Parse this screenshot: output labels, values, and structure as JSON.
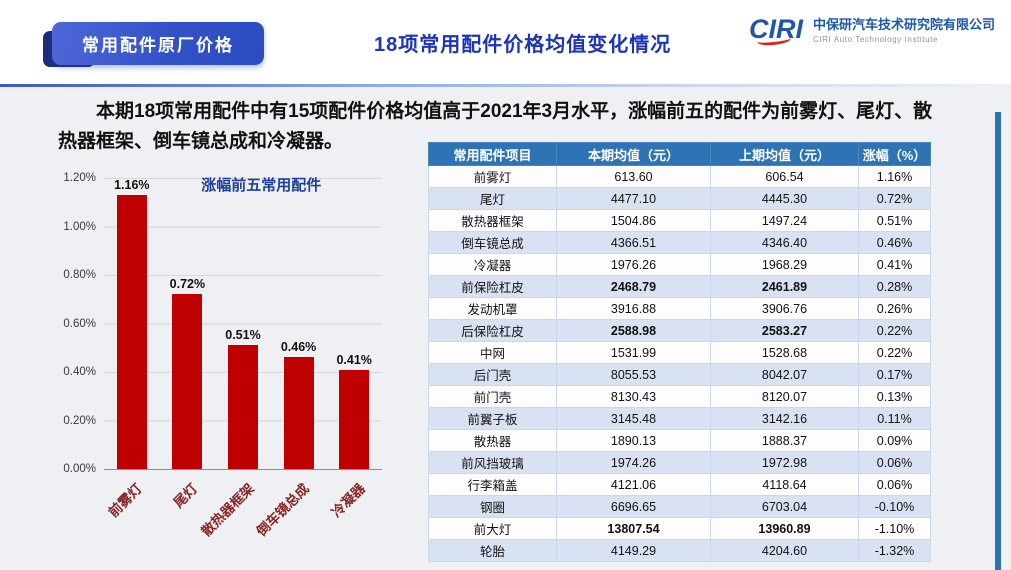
{
  "header": {
    "badge": "常用配件原厂价格",
    "title": "18项常用配件价格均值变化情况",
    "logo": {
      "mark": "CIRI",
      "company": "中保研汽车技术研究院有限公司",
      "subtitle": "CIRI Auto Technology Institute"
    }
  },
  "intro": "本期18项常用配件中有15项配件价格均值高于2021年3月水平，涨幅前五的配件为前雾灯、尾灯、散热器框架、倒车镜总成和冷凝器。",
  "chart_data": {
    "type": "bar",
    "title": "涨幅前五常用配件",
    "categories": [
      "前雾灯",
      "尾灯",
      "散热器框架",
      "倒车镜总成",
      "冷凝器"
    ],
    "values": [
      1.16,
      0.72,
      0.51,
      0.46,
      0.41
    ],
    "value_labels": [
      "1.16%",
      "0.72%",
      "0.51%",
      "0.46%",
      "0.41%"
    ],
    "xlabel": "",
    "ylabel": "",
    "ylim": [
      0,
      1.2
    ],
    "yticks": [
      "1.20%",
      "1.00%",
      "0.80%",
      "0.60%",
      "0.40%",
      "0.20%",
      "0.00%"
    ],
    "grid": true,
    "legend": false,
    "bar_color": "#c00000"
  },
  "table": {
    "headers": [
      "常用配件项目",
      "本期均值（元）",
      "上期均值（元）",
      "涨幅（%）"
    ],
    "rows": [
      {
        "name": "前雾灯",
        "current": "613.60",
        "previous": "606.54",
        "change": "1.16%",
        "bold": false
      },
      {
        "name": "尾灯",
        "current": "4477.10",
        "previous": "4445.30",
        "change": "0.72%",
        "bold": false
      },
      {
        "name": "散热器框架",
        "current": "1504.86",
        "previous": "1497.24",
        "change": "0.51%",
        "bold": false
      },
      {
        "name": "倒车镜总成",
        "current": "4366.51",
        "previous": "4346.40",
        "change": "0.46%",
        "bold": false
      },
      {
        "name": "冷凝器",
        "current": "1976.26",
        "previous": "1968.29",
        "change": "0.41%",
        "bold": false
      },
      {
        "name": "前保险杠皮",
        "current": "2468.79",
        "previous": "2461.89",
        "change": "0.28%",
        "bold": true
      },
      {
        "name": "发动机罩",
        "current": "3916.88",
        "previous": "3906.76",
        "change": "0.26%",
        "bold": false
      },
      {
        "name": "后保险杠皮",
        "current": "2588.98",
        "previous": "2583.27",
        "change": "0.22%",
        "bold": true
      },
      {
        "name": "中网",
        "current": "1531.99",
        "previous": "1528.68",
        "change": "0.22%",
        "bold": false
      },
      {
        "name": "后门壳",
        "current": "8055.53",
        "previous": "8042.07",
        "change": "0.17%",
        "bold": false
      },
      {
        "name": "前门壳",
        "current": "8130.43",
        "previous": "8120.07",
        "change": "0.13%",
        "bold": false
      },
      {
        "name": "前翼子板",
        "current": "3145.48",
        "previous": "3142.16",
        "change": "0.11%",
        "bold": false
      },
      {
        "name": "散热器",
        "current": "1890.13",
        "previous": "1888.37",
        "change": "0.09%",
        "bold": false
      },
      {
        "name": "前风挡玻璃",
        "current": "1974.26",
        "previous": "1972.98",
        "change": "0.06%",
        "bold": false
      },
      {
        "name": "行李箱盖",
        "current": "4121.06",
        "previous": "4118.64",
        "change": "0.06%",
        "bold": false
      },
      {
        "name": "钢圈",
        "current": "6696.65",
        "previous": "6703.04",
        "change": "-0.10%",
        "bold": false
      },
      {
        "name": "前大灯",
        "current": "13807.54",
        "previous": "13960.89",
        "change": "-1.10%",
        "bold": true
      },
      {
        "name": "轮胎",
        "current": "4149.29",
        "previous": "4204.60",
        "change": "-1.32%",
        "bold": false
      }
    ]
  },
  "colors": {
    "table_header_blue": "#2e74b5",
    "row_alt_blue": "#d9e2f3",
    "bar_red": "#c00000",
    "title_blue": "#1d33b8",
    "badge_blue": "#3352c8"
  }
}
